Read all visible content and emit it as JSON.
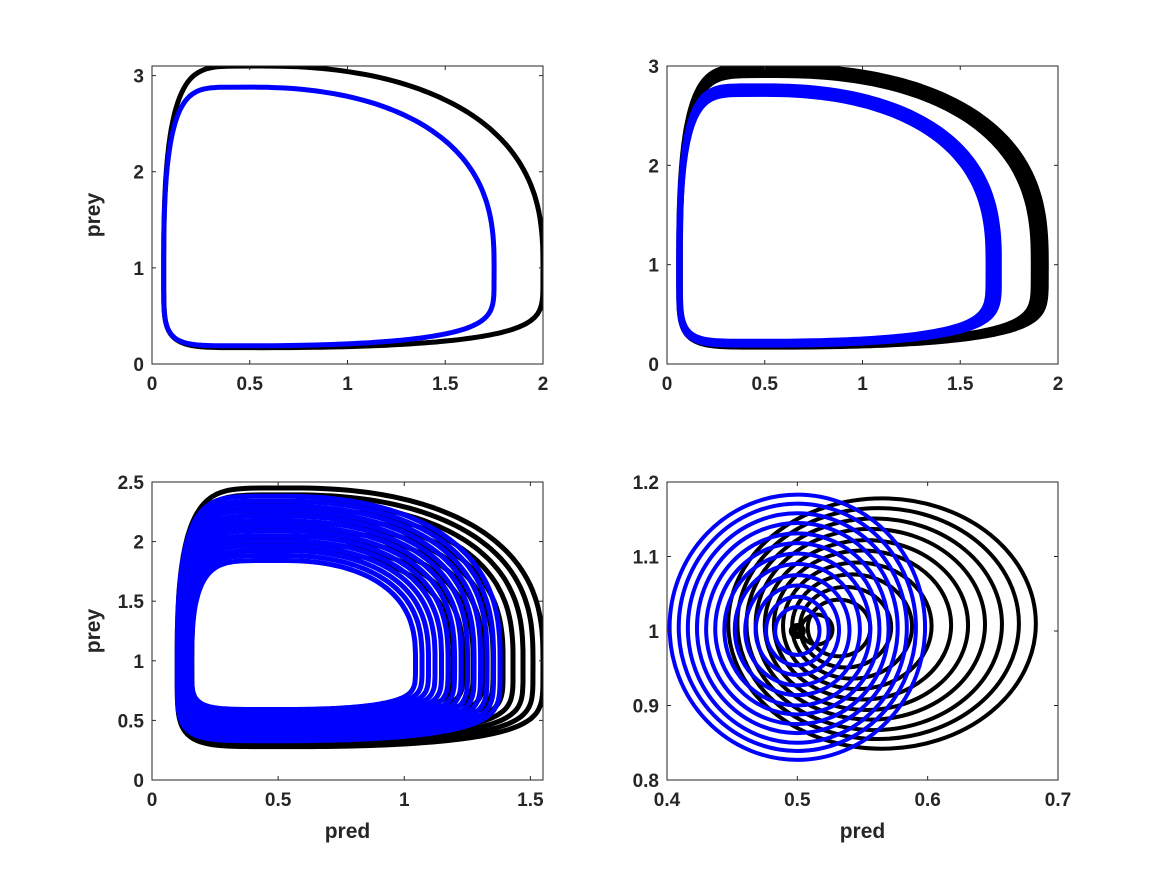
{
  "figure": {
    "colors": {
      "series_a": "#000000",
      "series_b": "#0000ff",
      "axis": "#262626"
    }
  },
  "chart_data": [
    {
      "type": "line",
      "panel": "top-left",
      "title": "",
      "xlabel": "",
      "ylabel": "prey",
      "xlim": [
        0,
        2
      ],
      "ylim": [
        0,
        3.1
      ],
      "xticks": [
        0,
        0.5,
        1,
        1.5,
        2
      ],
      "xtick_labels": [
        "0",
        "0.5",
        "1",
        "1.5",
        "2"
      ],
      "yticks": [
        0,
        1,
        2,
        3
      ],
      "ytick_labels": [
        "0",
        "1",
        "2",
        "3"
      ],
      "series": [
        {
          "name": "black",
          "color": "#000000",
          "linewidth": 5,
          "orbit": {
            "x0": 0.06,
            "x_peak": 0.56,
            "x_max": 2.0,
            "y_min": 0.17,
            "y_max": 3.1,
            "y_mid": 1.0
          },
          "bands": [
            {
              "shrink": 0,
              "offset": 0,
              "skew": 0
            }
          ]
        },
        {
          "name": "blue",
          "color": "#0000ff",
          "linewidth": 5,
          "orbit": {
            "x0": 0.06,
            "x_peak": 0.5,
            "x_max": 1.75,
            "y_min": 0.19,
            "y_max": 2.88,
            "y_mid": 1.0
          },
          "bands": [
            {
              "shrink": 0,
              "offset": 0,
              "skew": 0
            }
          ]
        }
      ]
    },
    {
      "type": "line",
      "panel": "top-right",
      "title": "",
      "xlabel": "",
      "ylabel": "",
      "xlim": [
        0,
        2
      ],
      "ylim": [
        0,
        3
      ],
      "xticks": [
        0,
        0.5,
        1,
        1.5,
        2
      ],
      "xtick_labels": [
        "0",
        "0.5",
        "1",
        "1.5",
        "2"
      ],
      "yticks": [
        0,
        1,
        2,
        3
      ],
      "ytick_labels": [
        "0",
        "1",
        "2",
        "3"
      ],
      "series": [
        {
          "name": "black",
          "color": "#000000",
          "linewidth": 5,
          "orbit": {
            "x0": 0.06,
            "x_peak": 0.56,
            "x_max": 1.94,
            "y_min": 0.17,
            "y_max": 3.0,
            "y_mid": 1.0
          },
          "bands": [
            {
              "shrink": 0,
              "offset": 0,
              "skew": 0
            },
            {
              "shrink": 0.012,
              "offset": 0,
              "skew": 0
            },
            {
              "shrink": 0.024,
              "offset": 0,
              "skew": 0
            },
            {
              "shrink": 0.036,
              "offset": 0,
              "skew": 0
            },
            {
              "shrink": 0.048,
              "offset": 0,
              "skew": 0
            }
          ]
        },
        {
          "name": "blue",
          "color": "#0000ff",
          "linewidth": 5,
          "orbit": {
            "x0": 0.06,
            "x_peak": 0.5,
            "x_max": 1.7,
            "y_min": 0.19,
            "y_max": 2.8,
            "y_mid": 1.0
          },
          "bands": [
            {
              "shrink": 0,
              "offset": 0,
              "skew": 0
            },
            {
              "shrink": 0.012,
              "offset": 0,
              "skew": 0
            },
            {
              "shrink": 0.024,
              "offset": 0,
              "skew": 0
            },
            {
              "shrink": 0.036,
              "offset": 0,
              "skew": 0
            },
            {
              "shrink": 0.048,
              "offset": 0,
              "skew": 0
            }
          ]
        }
      ]
    },
    {
      "type": "line",
      "panel": "bottom-left",
      "title": "",
      "xlabel": "pred",
      "ylabel": "prey",
      "xlim": [
        0,
        1.55
      ],
      "ylim": [
        0,
        2.5
      ],
      "xticks": [
        0,
        0.5,
        1,
        1.5
      ],
      "xtick_labels": [
        "0",
        "0.5",
        "1",
        "1.5"
      ],
      "yticks": [
        0,
        0.5,
        1,
        1.5,
        2,
        2.5
      ],
      "ytick_labels": [
        "0",
        "0.5",
        "1",
        "1.5",
        "2",
        "2.5"
      ],
      "series": [
        {
          "name": "black",
          "color": "#000000",
          "linewidth": 5,
          "orbit": {
            "x0": 0.1,
            "x_peak": 0.56,
            "x_max": 1.55,
            "y_min": 0.28,
            "y_max": 2.45,
            "y_mid": 1.0
          },
          "bands": [
            {
              "shrink": 0,
              "offset": 0,
              "skew": 0
            },
            {
              "shrink": 0.04,
              "offset": 0,
              "skew": 0
            },
            {
              "shrink": 0.08,
              "offset": 0,
              "skew": 0
            },
            {
              "shrink": 0.12,
              "offset": 0,
              "skew": 0
            },
            {
              "shrink": 0.16,
              "offset": 0,
              "skew": 0
            },
            {
              "shrink": 0.2,
              "offset": 0,
              "skew": 0
            },
            {
              "shrink": 0.24,
              "offset": 0,
              "skew": 0
            },
            {
              "shrink": 0.28,
              "offset": 0,
              "skew": 0
            },
            {
              "shrink": 0.32,
              "offset": 0,
              "skew": 0
            },
            {
              "shrink": 0.36,
              "offset": 0,
              "skew": 0
            }
          ]
        },
        {
          "name": "blue",
          "color": "#0000ff",
          "linewidth": 5,
          "orbit": {
            "x0": 0.1,
            "x_peak": 0.52,
            "x_max": 1.38,
            "y_min": 0.33,
            "y_max": 2.38,
            "y_mid": 1.0
          },
          "bands": [
            {
              "shrink": 0,
              "offset": 0,
              "skew": 0
            },
            {
              "shrink": 0.03,
              "offset": 0,
              "skew": 0
            },
            {
              "shrink": 0.06,
              "offset": 0,
              "skew": 0
            },
            {
              "shrink": 0.09,
              "offset": 0,
              "skew": 0
            },
            {
              "shrink": 0.12,
              "offset": 0,
              "skew": 0
            },
            {
              "shrink": 0.15,
              "offset": 0,
              "skew": 0
            },
            {
              "shrink": 0.18,
              "offset": 0,
              "skew": 0
            },
            {
              "shrink": 0.21,
              "offset": 0,
              "skew": 0
            },
            {
              "shrink": 0.24,
              "offset": 0,
              "skew": 0
            },
            {
              "shrink": 0.27,
              "offset": 0,
              "skew": 0
            },
            {
              "shrink": 0.3,
              "offset": 0,
              "skew": 0
            },
            {
              "shrink": 0.33,
              "offset": 0,
              "skew": 0
            },
            {
              "shrink": 0.36,
              "offset": 0,
              "skew": 0
            },
            {
              "shrink": 0.39,
              "offset": 0,
              "skew": 0
            }
          ]
        }
      ]
    },
    {
      "type": "line",
      "panel": "bottom-right",
      "title": "",
      "xlabel": "pred",
      "ylabel": "",
      "xlim": [
        0.4,
        0.7
      ],
      "ylim": [
        0.8,
        1.2
      ],
      "xticks": [
        0.4,
        0.5,
        0.6,
        0.7
      ],
      "xtick_labels": [
        "0.4",
        "0.5",
        "0.6",
        "0.7"
      ],
      "yticks": [
        0.8,
        0.9,
        1.0,
        1.1,
        1.2
      ],
      "ytick_labels": [
        "0.8",
        "0.9",
        "1",
        "1.1",
        "1.2"
      ],
      "series": [
        {
          "name": "black",
          "color": "#000000",
          "linewidth": 4,
          "rings": [
            {
              "cx": 0.565,
              "cy": 1.01,
              "rx": 0.118,
              "ry": 0.168
            },
            {
              "cx": 0.562,
              "cy": 1.01,
              "rx": 0.108,
              "ry": 0.155
            },
            {
              "cx": 0.559,
              "cy": 1.009,
              "rx": 0.098,
              "ry": 0.142
            },
            {
              "cx": 0.556,
              "cy": 1.009,
              "rx": 0.088,
              "ry": 0.128
            },
            {
              "cx": 0.553,
              "cy": 1.008,
              "rx": 0.078,
              "ry": 0.114
            },
            {
              "cx": 0.55,
              "cy": 1.008,
              "rx": 0.068,
              "ry": 0.1
            },
            {
              "cx": 0.546,
              "cy": 1.007,
              "rx": 0.057,
              "ry": 0.085
            },
            {
              "cx": 0.542,
              "cy": 1.006,
              "rx": 0.046,
              "ry": 0.07
            },
            {
              "cx": 0.537,
              "cy": 1.005,
              "rx": 0.035,
              "ry": 0.054
            },
            {
              "cx": 0.532,
              "cy": 1.004,
              "rx": 0.024,
              "ry": 0.038
            },
            {
              "cx": 0.515,
              "cy": 1.002,
              "rx": 0.012,
              "ry": 0.02
            },
            {
              "cx": 0.5,
              "cy": 1.0,
              "rx": 0.005,
              "ry": 0.008
            },
            {
              "cx": 0.5,
              "cy": 1.0,
              "rx": 0.002,
              "ry": 0.003
            }
          ]
        },
        {
          "name": "blue",
          "color": "#0000ff",
          "linewidth": 4,
          "rings": [
            {
              "cx": 0.5,
              "cy": 1.005,
              "rx": 0.098,
              "ry": 0.178
            },
            {
              "cx": 0.5,
              "cy": 1.005,
              "rx": 0.091,
              "ry": 0.166
            },
            {
              "cx": 0.5,
              "cy": 1.004,
              "rx": 0.084,
              "ry": 0.154
            },
            {
              "cx": 0.5,
              "cy": 1.004,
              "rx": 0.077,
              "ry": 0.141
            },
            {
              "cx": 0.5,
              "cy": 1.003,
              "rx": 0.07,
              "ry": 0.128
            },
            {
              "cx": 0.5,
              "cy": 1.003,
              "rx": 0.063,
              "ry": 0.115
            },
            {
              "cx": 0.5,
              "cy": 1.002,
              "rx": 0.056,
              "ry": 0.102
            },
            {
              "cx": 0.5,
              "cy": 1.002,
              "rx": 0.048,
              "ry": 0.088
            },
            {
              "cx": 0.5,
              "cy": 1.001,
              "rx": 0.04,
              "ry": 0.074
            },
            {
              "cx": 0.5,
              "cy": 1.001,
              "rx": 0.032,
              "ry": 0.06
            },
            {
              "cx": 0.5,
              "cy": 1.0,
              "rx": 0.024,
              "ry": 0.046
            },
            {
              "cx": 0.5,
              "cy": 1.0,
              "rx": 0.017,
              "ry": 0.032
            }
          ]
        }
      ]
    }
  ]
}
